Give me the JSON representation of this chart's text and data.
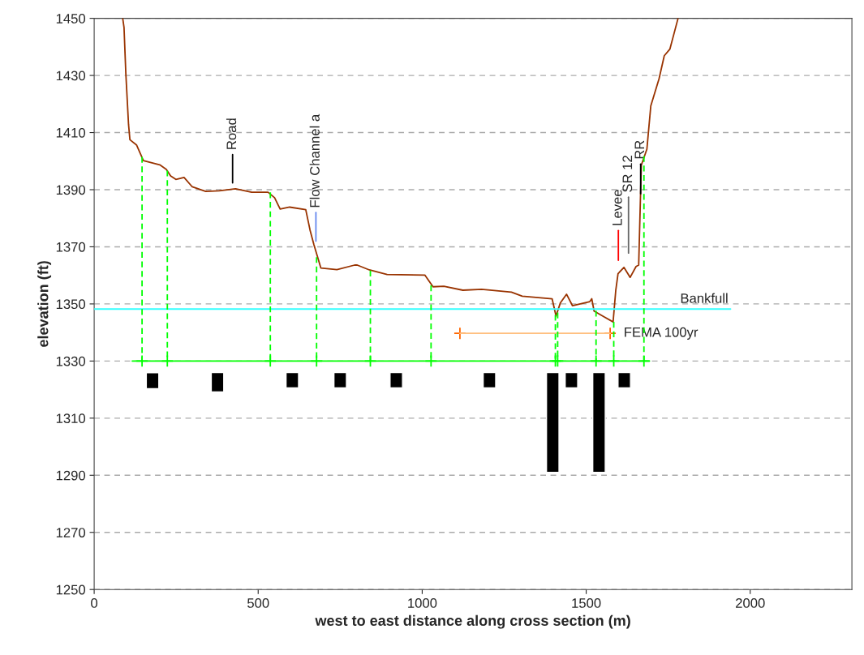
{
  "chart_data": {
    "type": "line",
    "xlabel": "west to east distance along cross section (m)",
    "ylabel": "elevation (ft)",
    "xlim": [
      0,
      2310
    ],
    "xticks": [
      0,
      500,
      1000,
      1500,
      2000
    ],
    "ylim": [
      1250,
      1450
    ],
    "yticks": [
      1250,
      1270,
      1290,
      1310,
      1330,
      1350,
      1370,
      1390,
      1410,
      1430,
      1450
    ],
    "grid": "y",
    "legend": false,
    "series": [
      {
        "color": "#993300",
        "x": [
          87,
          91,
          96.5,
          104.8,
          109,
          129.5,
          142,
          150,
          200,
          220,
          233,
          249,
          274,
          299,
          340,
          381,
          431,
          480,
          530,
          550,
          567,
          596,
          645,
          658,
          670,
          691,
          740,
          794,
          802,
          839,
          893,
          1008,
          1033,
          1066,
          1124,
          1181,
          1272,
          1305,
          1396,
          1408,
          1421,
          1440,
          1458,
          1511,
          1517,
          1524,
          1553,
          1582,
          1590,
          1597,
          1615,
          1634,
          1652,
          1660,
          1668,
          1685,
          1697,
          1722,
          1738,
          1755,
          1780
        ],
        "values": [
          1450,
          1446.8,
          1430.7,
          1412.8,
          1407.5,
          1405.6,
          1402.3,
          1400.2,
          1398.7,
          1397.1,
          1394.8,
          1393.6,
          1394.3,
          1391,
          1389.4,
          1389.6,
          1390.3,
          1389.1,
          1389.1,
          1387.2,
          1383.2,
          1383.9,
          1383,
          1375.9,
          1370.7,
          1362.6,
          1362,
          1363.6,
          1363.6,
          1361.9,
          1360.3,
          1360.1,
          1356,
          1356.2,
          1354.8,
          1355.1,
          1354.1,
          1352.7,
          1351.8,
          1345.8,
          1350.3,
          1353.4,
          1349.4,
          1350.8,
          1351.8,
          1347.5,
          1345.6,
          1343.7,
          1354.6,
          1360.6,
          1362.8,
          1359.3,
          1363.1,
          1363.6,
          1398.6,
          1404.2,
          1419.4,
          1428.8,
          1436.9,
          1439.2,
          1450
        ]
      },
      {
        "name": "Bankfull",
        "color": "#33ffff",
        "x": [
          0,
          1940
        ],
        "values": [
          1348.2,
          1348.2
        ]
      },
      {
        "name": "FEMA 100yr",
        "color": "#ffc080",
        "x": [
          1115,
          1573
        ],
        "values": [
          1339.7,
          1339.7
        ]
      },
      {
        "type": "scatter",
        "color": "#ff6600",
        "marker": "cross",
        "x": [
          1115,
          1573
        ],
        "values": [
          1339.7,
          1339.7
        ]
      },
      {
        "color": "#00ff00",
        "x": [
          116,
          1693
        ],
        "values": [
          1330,
          1330
        ]
      },
      {
        "type": "scatter",
        "color": "#00ff00",
        "marker": "cross",
        "x": [
          146,
          223,
          537,
          678,
          842,
          1027,
          1406,
          1413,
          1530,
          1584,
          1676
        ],
        "values": [
          1330,
          1330,
          1330,
          1330,
          1330,
          1330,
          1330,
          1330,
          1330,
          1330,
          1330
        ]
      },
      {
        "color": "#00ff00",
        "line_style": "dashed",
        "x": [
          146,
          146
        ],
        "values": [
          1401.5,
          1330
        ]
      },
      {
        "color": "#00ff00",
        "line_style": "dashed",
        "x": [
          223,
          223
        ],
        "values": [
          1396.7,
          1330
        ]
      },
      {
        "color": "#00ff00",
        "line_style": "dashed",
        "x": [
          537,
          537
        ],
        "values": [
          1389.1,
          1330
        ]
      },
      {
        "color": "#00ff00",
        "line_style": "dashed",
        "x": [
          678,
          678
        ],
        "values": [
          1366.4,
          1330
        ]
      },
      {
        "color": "#00ff00",
        "line_style": "dashed",
        "x": [
          842,
          842
        ],
        "values": [
          1361.7,
          1330
        ]
      },
      {
        "color": "#00ff00",
        "line_style": "dashed",
        "x": [
          1027,
          1027
        ],
        "values": [
          1356.5,
          1330
        ]
      },
      {
        "color": "#00ff00",
        "line_style": "dashed",
        "x": [
          1406,
          1406
        ],
        "values": [
          1346.2,
          1330
        ]
      },
      {
        "color": "#00ff00",
        "line_style": "dashed",
        "x": [
          1413,
          1413
        ],
        "values": [
          1347,
          1330
        ]
      },
      {
        "color": "#00ff00",
        "line_style": "dashed",
        "x": [
          1530,
          1530
        ],
        "values": [
          1347.6,
          1330
        ]
      },
      {
        "color": "#00ff00",
        "line_style": "dashed",
        "x": [
          1584,
          1584
        ],
        "values": [
          1343.7,
          1330
        ]
      },
      {
        "color": "#00ff00",
        "line_style": "dashed",
        "x": [
          1676,
          1676
        ],
        "values": [
          1401.8,
          1330
        ]
      },
      {
        "type": "bar",
        "color": "#000000",
        "x": [
          178,
          376,
          604,
          750,
          921,
          1205,
          1398,
          1455,
          1539,
          1616
        ],
        "base": [
          1320.3,
          1319.2,
          1320.6,
          1320.6,
          1320.6,
          1320.6,
          1291,
          1320.6,
          1291,
          1320.6
        ],
        "values": [
          5.6,
          6.8,
          5.4,
          5.4,
          5.4,
          5.4,
          35,
          5.4,
          35,
          5.4
        ]
      },
      {
        "color": "#000000",
        "x": [
          422,
          422
        ],
        "values": [
          1392.4,
          1402.3
        ]
      },
      {
        "color": "#6688ee",
        "x": [
          676,
          676
        ],
        "values": [
          1372,
          1382
        ]
      },
      {
        "color": "#ff0000",
        "x": [
          1598,
          1598
        ],
        "values": [
          1365.3,
          1375.7
        ]
      },
      {
        "color": "#666666",
        "x": [
          1629,
          1629
        ],
        "values": [
          1367.8,
          1387.4
        ]
      },
      {
        "color": "#000000",
        "x": [
          1666,
          1666
        ],
        "values": [
          1388.6,
          1399
        ]
      }
    ],
    "annotations": [
      {
        "text": "Road",
        "x": 422,
        "y": 1402.3
      },
      {
        "text": "Flow Channel a",
        "x": 676,
        "y": 1382
      },
      {
        "text": "Levee",
        "x": 1598,
        "y": 1375.7
      },
      {
        "text": "SR 12",
        "x": 1629,
        "y": 1387.4
      },
      {
        "text": "RR",
        "x": 1666,
        "y": 1399
      }
    ]
  }
}
